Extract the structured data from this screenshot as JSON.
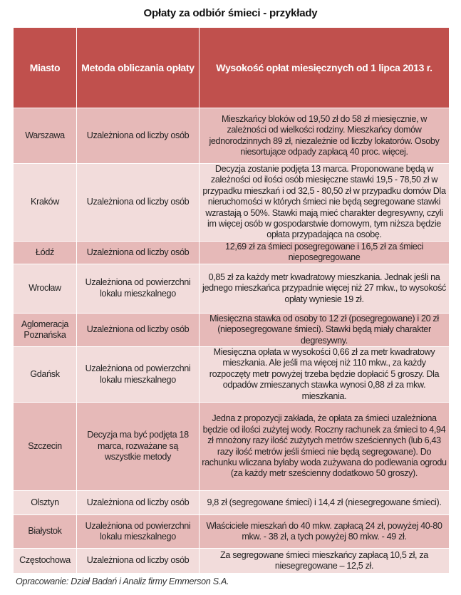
{
  "title": "Opłaty za odbiór śmieci - przykłady",
  "headers": [
    "Miasto",
    "Metoda obliczania opłaty",
    "Wysokość opłat miesięcznych od 1 lipca 2013 r."
  ],
  "rows": [
    {
      "city": "Warszawa",
      "method": "Uzależniona od liczby osób",
      "fee": "Mieszkańcy bloków od 19,50 zł do 58 zł miesięcznie, w zależności od wielkości rodziny. Mieszkańcy domów jednorodzinnych 89 zł, niezależnie od liczby lokatorów. Osoby niesortujące odpady zapłacą 40 proc. więcej."
    },
    {
      "city": "Kraków",
      "method": "Uzależniona od liczby osób",
      "fee": "Decyzja zostanie podjęta 13 marca. Proponowane będą w zależności od ilości osób miesięczne stawki 19,5 - 78,50 zł w przypadku mieszkań i od 32,5 - 80,50 zł w przypadku domów Dla nieruchomości w których śmieci nie będą segregowane stawki wzrastają o 50%. Stawki mają mieć charakter degresywny, czyli im więcej osób w gospodarstwie domowym, tym niższa będzie opłata przypadająca na osobę."
    },
    {
      "city": "Łódź",
      "method": "Uzależniona od liczby osób",
      "fee": "12,69 zł za śmieci posegregowane i 16,5 zł za śmieci nieposegregowane"
    },
    {
      "city": "Wrocław",
      "method": "Uzależniona od powierzchni lokalu mieszkalnego",
      "fee": "0,85 zł za każdy metr kwadratowy mieszkania. Jednak jeśli na jednego mieszkańca przypadnie więcej niż 27 mkw., to wysokość opłaty wyniesie 19 zł."
    },
    {
      "city": "Aglomeracja Poznańska",
      "method": "Uzależniona od liczby osób",
      "fee": "Miesięczna stawka od osoby to 12 zł (posegregowane) i 20 zł (nieposegregowane śmieci). Stawki będą miały charakter degresywny."
    },
    {
      "city": "Gdańsk",
      "method": "Uzależniona od powierzchni lokalu mieszkalnego",
      "fee": "Miesięczna opłata w wysokości 0,66 zł za metr kwadratowy mieszkania. Ale jeśli ma więcej niż 110 mkw., za każdy rozpoczęty metr powyżej trzeba będzie dopłacić 5 groszy. Dla odpadów zmieszanych stawka wynosi 0,88 zł za mkw. mieszkania."
    },
    {
      "city": "Szczecin",
      "method": "Decyzja ma być podjęta 18 marca, rozważane są wszystkie metody",
      "fee": "Jedna z propozycji zakłada, że opłata za śmieci uzależniona będzie od ilości zużytej wody. Roczny rachunek za śmieci to 4,94 zł mnożony razy ilość zużytych metrów sześciennych (lub 6,43 razy ilość metrów jeśli śmieci nie będą segregowane). Do rachunku wliczana byłaby woda zużywana do podlewania ogrodu (za każdy metr sześcienny dodatkowo 50 groszy)."
    },
    {
      "city": "Olsztyn",
      "method": "Uzależniona od liczby osób",
      "fee": "9,8 zł (segregowane śmieci) i 14,4 zł (niesegregowane śmieci)."
    },
    {
      "city": "Białystok",
      "method": "Uzależniona od powierzchni lokalu mieszkalnego",
      "fee": "Właściciele mieszkań do 40 mkw. zapłacą 24 zł, powyżej 40-80 mkw. - 38 zł, a tych powyżej 80 mkw. - 49 zł."
    },
    {
      "city": "Częstochowa",
      "method": "Uzależniona od liczby osób",
      "fee": "Za segregowane śmieci mieszkańcy zapłacą 10,5 zł, za niesegregowane – 12,5 zł."
    }
  ],
  "footer": "Opracowanie: Dział Badań i Analiz firmy Emmerson S.A."
}
